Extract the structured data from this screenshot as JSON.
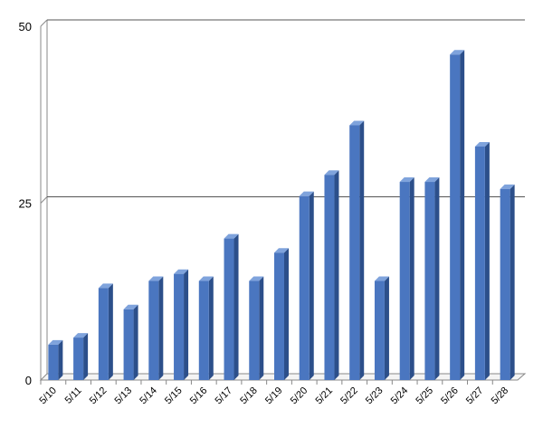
{
  "chart_data": {
    "type": "bar",
    "categories": [
      "5/10",
      "5/11",
      "5/12",
      "5/13",
      "5/14",
      "5/15",
      "5/16",
      "5/17",
      "5/18",
      "5/19",
      "5/20",
      "5/21",
      "5/22",
      "5/23",
      "5/24",
      "5/25",
      "5/26",
      "5/27",
      "5/28"
    ],
    "values": [
      5,
      6,
      13,
      10,
      14,
      15,
      14,
      20,
      14,
      18,
      26,
      29,
      36,
      14,
      28,
      28,
      46,
      33,
      27
    ],
    "color": "#4a76c0",
    "ylim": [
      0,
      50
    ],
    "yticks": [
      0,
      25,
      50
    ],
    "grid": true
  }
}
